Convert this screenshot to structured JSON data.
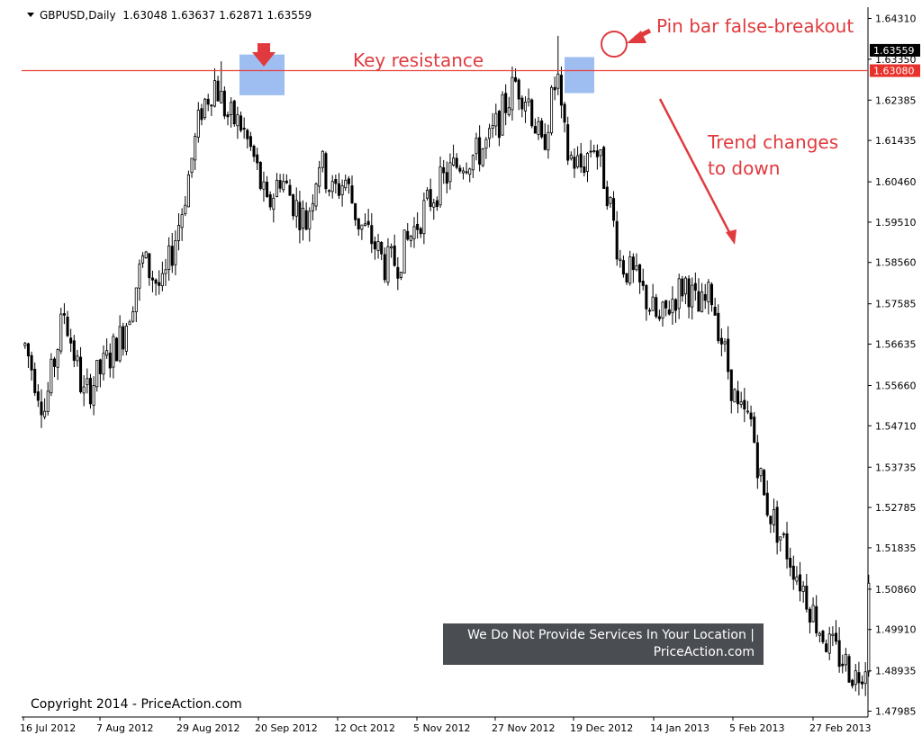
{
  "header": {
    "symbol": "GBPUSD,Daily",
    "ohlc": "1.63048 1.63637 1.62871 1.63559"
  },
  "annotations": {
    "pin_bar": "Pin bar false-breakout",
    "key_resistance": "Key resistance",
    "trend_line1": "Trend changes",
    "trend_line2": "to down"
  },
  "banner": {
    "line1": "We Do Not Provide Services In Your Location |",
    "line2": "PriceAction.com"
  },
  "copyright": "Copyright 2014 - PriceAction.com",
  "colors": {
    "annotation_red": "#e03a3e",
    "resistance_line": "#e8403a",
    "highlight_blue": "#7ea7ec",
    "current_price_tag": "#000000",
    "resistance_tag": "#e8312a",
    "candle_bull": "#ffffff",
    "candle_bear": "#000000"
  },
  "chart_data": {
    "type": "candlestick",
    "symbol": "GBPUSD",
    "timeframe": "Daily",
    "ylim": [
      1.4775,
      1.6455
    ],
    "y_ticks": [
      "1.64310",
      "1.63350",
      "1.62385",
      "1.61435",
      "1.60460",
      "1.59510",
      "1.58560",
      "1.57585",
      "1.56635",
      "1.55660",
      "1.54710",
      "1.53735",
      "1.52785",
      "1.51835",
      "1.50860",
      "1.49910",
      "1.48935",
      "1.47985"
    ],
    "x_ticks": [
      "16 Jul 2012",
      "7 Aug 2012",
      "29 Aug 2012",
      "20 Sep 2012",
      "12 Oct 2012",
      "5 Nov 2012",
      "27 Nov 2012",
      "19 Dec 2012",
      "14 Jan 2013",
      "5 Feb 2013",
      "27 Feb 2013"
    ],
    "current_price": "1.63559",
    "key_resistance": "1.63080",
    "trend": [
      [
        0,
        1.566
      ],
      [
        6,
        1.551
      ],
      [
        12,
        1.574
      ],
      [
        18,
        1.554
      ],
      [
        24,
        1.561
      ],
      [
        30,
        1.569
      ],
      [
        36,
        1.586
      ],
      [
        42,
        1.579
      ],
      [
        48,
        1.598
      ],
      [
        54,
        1.622
      ],
      [
        58,
        1.628
      ],
      [
        62,
        1.62
      ],
      [
        66,
        1.618
      ],
      [
        70,
        1.61
      ],
      [
        74,
        1.598
      ],
      [
        78,
        1.606
      ],
      [
        82,
        1.6
      ],
      [
        86,
        1.595
      ],
      [
        90,
        1.61
      ],
      [
        94,
        1.602
      ],
      [
        98,
        1.605
      ],
      [
        102,
        1.595
      ],
      [
        106,
        1.591
      ],
      [
        110,
        1.585
      ],
      [
        114,
        1.586
      ],
      [
        118,
        1.592
      ],
      [
        122,
        1.598
      ],
      [
        126,
        1.603
      ],
      [
        130,
        1.607
      ],
      [
        134,
        1.61
      ],
      [
        138,
        1.611
      ],
      [
        142,
        1.614
      ],
      [
        146,
        1.621
      ],
      [
        150,
        1.628
      ],
      [
        154,
        1.624
      ],
      [
        158,
        1.612
      ],
      [
        162,
        1.627
      ],
      [
        166,
        1.611
      ],
      [
        170,
        1.608
      ],
      [
        174,
        1.614
      ],
      [
        178,
        1.603
      ],
      [
        182,
        1.586
      ],
      [
        186,
        1.582
      ],
      [
        190,
        1.577
      ],
      [
        194,
        1.571
      ],
      [
        198,
        1.577
      ],
      [
        202,
        1.581
      ],
      [
        206,
        1.574
      ],
      [
        210,
        1.578
      ],
      [
        214,
        1.564
      ],
      [
        218,
        1.55
      ],
      [
        222,
        1.548
      ],
      [
        226,
        1.53
      ],
      [
        230,
        1.523
      ],
      [
        234,
        1.516
      ],
      [
        238,
        1.509
      ],
      [
        242,
        1.501
      ],
      [
        246,
        1.495
      ],
      [
        250,
        1.492
      ],
      [
        254,
        1.488
      ],
      [
        258,
        1.493
      ]
    ]
  }
}
